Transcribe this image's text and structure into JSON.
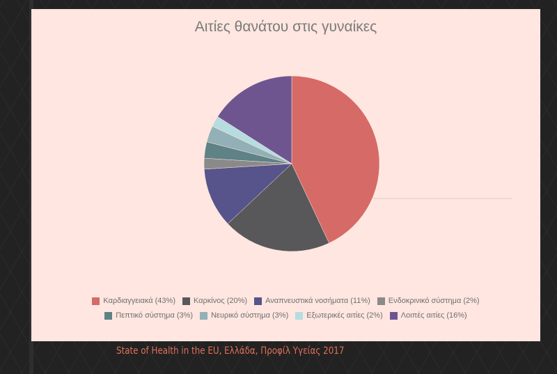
{
  "chart_data": {
    "type": "pie",
    "title": "Αιτίες θανάτου στις γυναίκες",
    "start_angle": "top, clockwise",
    "legend_position": "bottom",
    "slices": [
      {
        "label": "Καρδιαγγειακά (43%)",
        "value": 43,
        "color": "#d56a66"
      },
      {
        "label": "Καρκίνος (20%)",
        "value": 20,
        "color": "#58585a"
      },
      {
        "label": "Αναπνευστικά νοσήματα (11%)",
        "value": 11,
        "color": "#56548a"
      },
      {
        "label": "Ενδοκρινικό σύστημα (2%)",
        "value": 2,
        "color": "#8a8a8a"
      },
      {
        "label": "Πεπτικό σύστημα (3%)",
        "value": 3,
        "color": "#5e8285"
      },
      {
        "label": "Νευρικό σύστημα (3%)",
        "value": 3,
        "color": "#92b0b5"
      },
      {
        "label": "Εξωτερικές αιτίες (2%)",
        "value": 2,
        "color": "#b6dce0"
      },
      {
        "label": "Λοιπές αιτίες (16%)",
        "value": 16,
        "color": "#6f5590"
      }
    ]
  },
  "caption": "State of Health in the EU, Ελλάδα,  Προφίλ Υγείας 2017"
}
